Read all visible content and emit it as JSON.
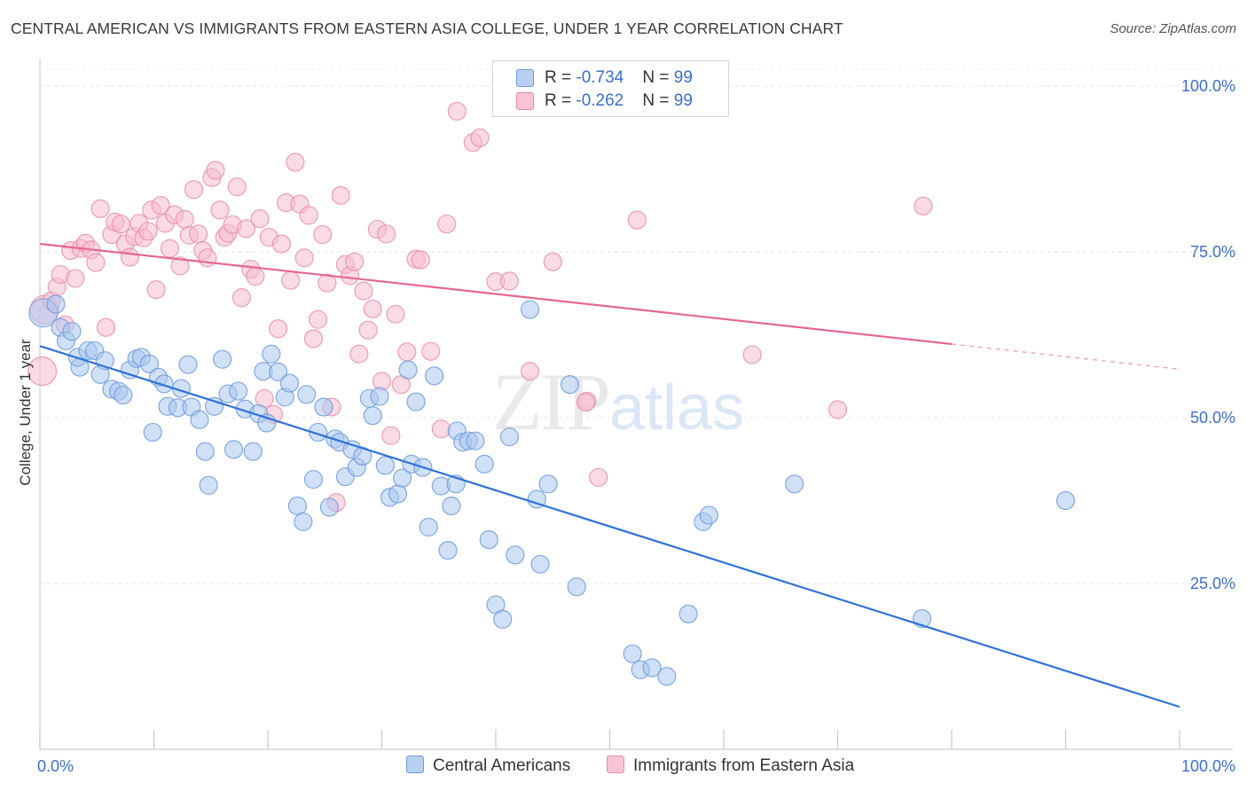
{
  "title": "CENTRAL AMERICAN VS IMMIGRANTS FROM EASTERN ASIA COLLEGE, UNDER 1 YEAR CORRELATION CHART",
  "source": "Source: ZipAtlas.com",
  "watermark": {
    "zip": "ZIP",
    "atlas": "atlas"
  },
  "legend": {
    "rows": [
      {
        "r_label": "R = ",
        "r_value": "-0.734",
        "n_label": "N = ",
        "n_value": "99",
        "color": "#b9d0f2"
      },
      {
        "r_label": "R = ",
        "r_value": "-0.262",
        "n_label": "N = ",
        "n_value": "99",
        "color": "#f8c3d4"
      }
    ]
  },
  "bottom_legend": {
    "series1": "Central Americans",
    "series2": "Immigrants from Eastern Asia"
  },
  "colors": {
    "blue_fill": "#a9c6ee",
    "blue_stroke": "#6f9bdc",
    "blue_line": "#2f73d8",
    "pink_fill": "#f6bccd",
    "pink_stroke": "#e989a8",
    "pink_line": "#e4688f",
    "accent_text": "#3b6fd0"
  },
  "chart_data": {
    "type": "scatter",
    "title": "CENTRAL AMERICAN VS IMMIGRANTS FROM EASTERN ASIA COLLEGE, UNDER 1 YEAR CORRELATION CHART",
    "ylabel": "College, Under 1 year",
    "xlim": [
      0,
      100
    ],
    "ylim": [
      0,
      100
    ],
    "x_tick_labels": [
      "0.0%",
      "100.0%"
    ],
    "y_tick_labels": [
      "100.0%",
      "75.0%",
      "50.0%",
      "25.0%"
    ],
    "y_ticks": [
      100,
      75,
      50,
      25
    ],
    "grid": true,
    "legend_placement": "top-center",
    "series": [
      {
        "name": "Central Americans",
        "r": -0.734,
        "n": 99,
        "trend": {
          "x": [
            0,
            100
          ],
          "y": [
            60.8,
            6.4
          ]
        },
        "points": [
          [
            0.3,
            65.8
          ],
          [
            1.4,
            67.1
          ],
          [
            1.8,
            63.6
          ],
          [
            2.3,
            61.6
          ],
          [
            2.8,
            63.0
          ],
          [
            3.5,
            57.6
          ],
          [
            3.3,
            59.1
          ],
          [
            4.2,
            60.1
          ],
          [
            4.8,
            60.1
          ],
          [
            5.3,
            56.5
          ],
          [
            5.7,
            58.6
          ],
          [
            6.3,
            54.3
          ],
          [
            6.9,
            54.0
          ],
          [
            7.3,
            53.4
          ],
          [
            7.9,
            57.2
          ],
          [
            8.5,
            58.9
          ],
          [
            8.9,
            59.1
          ],
          [
            9.6,
            58.1
          ],
          [
            9.9,
            47.8
          ],
          [
            10.4,
            56.1
          ],
          [
            10.9,
            55.1
          ],
          [
            11.2,
            51.7
          ],
          [
            12.1,
            51.5
          ],
          [
            12.4,
            54.4
          ],
          [
            13.0,
            58.0
          ],
          [
            13.3,
            51.6
          ],
          [
            14.0,
            49.7
          ],
          [
            14.5,
            44.9
          ],
          [
            14.8,
            39.8
          ],
          [
            15.3,
            51.7
          ],
          [
            16.0,
            58.8
          ],
          [
            16.5,
            53.6
          ],
          [
            17.0,
            45.2
          ],
          [
            17.4,
            54.0
          ],
          [
            18.0,
            51.3
          ],
          [
            18.7,
            44.9
          ],
          [
            19.2,
            50.6
          ],
          [
            19.6,
            57.0
          ],
          [
            19.9,
            49.2
          ],
          [
            20.3,
            59.6
          ],
          [
            20.9,
            56.9
          ],
          [
            21.5,
            53.1
          ],
          [
            21.9,
            55.2
          ],
          [
            22.6,
            36.7
          ],
          [
            23.1,
            34.3
          ],
          [
            23.4,
            53.5
          ],
          [
            24.0,
            40.7
          ],
          [
            24.4,
            47.8
          ],
          [
            24.9,
            51.6
          ],
          [
            25.4,
            36.5
          ],
          [
            25.9,
            46.8
          ],
          [
            26.3,
            46.3
          ],
          [
            26.8,
            41.1
          ],
          [
            27.4,
            45.2
          ],
          [
            27.8,
            42.5
          ],
          [
            28.3,
            44.2
          ],
          [
            28.9,
            52.9
          ],
          [
            29.2,
            50.3
          ],
          [
            29.8,
            53.2
          ],
          [
            30.3,
            42.8
          ],
          [
            30.7,
            38.0
          ],
          [
            31.4,
            38.5
          ],
          [
            31.8,
            40.9
          ],
          [
            32.3,
            57.2
          ],
          [
            32.6,
            43.0
          ],
          [
            33.0,
            52.4
          ],
          [
            33.6,
            42.5
          ],
          [
            34.1,
            33.5
          ],
          [
            34.6,
            56.3
          ],
          [
            35.2,
            39.7
          ],
          [
            35.8,
            30.0
          ],
          [
            36.1,
            36.7
          ],
          [
            36.6,
            48.0
          ],
          [
            37.1,
            46.3
          ],
          [
            37.6,
            46.5
          ],
          [
            38.2,
            46.5
          ],
          [
            39.0,
            43.0
          ],
          [
            39.4,
            31.6
          ],
          [
            40.0,
            21.8
          ],
          [
            40.6,
            19.6
          ],
          [
            41.2,
            47.1
          ],
          [
            41.7,
            29.3
          ],
          [
            43.0,
            66.3
          ],
          [
            43.6,
            37.7
          ],
          [
            43.9,
            27.9
          ],
          [
            44.6,
            40.0
          ],
          [
            46.5,
            55.0
          ],
          [
            47.1,
            24.5
          ],
          [
            52.0,
            14.4
          ],
          [
            52.7,
            12.0
          ],
          [
            53.7,
            12.3
          ],
          [
            55.0,
            11.0
          ],
          [
            56.9,
            20.4
          ],
          [
            58.2,
            34.3
          ],
          [
            58.7,
            35.3
          ],
          [
            66.2,
            40.0
          ],
          [
            77.4,
            19.7
          ],
          [
            90.0,
            37.5
          ],
          [
            36.5,
            40.0
          ]
        ]
      },
      {
        "name": "Immigrants from Eastern Asia",
        "r": -0.262,
        "n": 99,
        "trend": {
          "x": [
            0,
            80,
            100
          ],
          "y": [
            76.2,
            61.1,
            57.3
          ],
          "solid_until_x": 80
        },
        "points": [
          [
            0.2,
            57.0
          ],
          [
            0.4,
            66.3
          ],
          [
            1.0,
            67.6
          ],
          [
            1.5,
            69.7
          ],
          [
            1.8,
            71.6
          ],
          [
            2.2,
            64.0
          ],
          [
            2.7,
            75.2
          ],
          [
            3.1,
            71.0
          ],
          [
            3.6,
            75.5
          ],
          [
            4.0,
            76.3
          ],
          [
            4.5,
            75.3
          ],
          [
            4.9,
            73.4
          ],
          [
            5.3,
            81.5
          ],
          [
            5.8,
            63.6
          ],
          [
            6.3,
            77.6
          ],
          [
            6.6,
            79.5
          ],
          [
            7.1,
            79.2
          ],
          [
            7.5,
            76.2
          ],
          [
            7.9,
            74.2
          ],
          [
            8.3,
            77.3
          ],
          [
            8.7,
            79.3
          ],
          [
            9.1,
            77.1
          ],
          [
            9.5,
            78.1
          ],
          [
            9.8,
            81.3
          ],
          [
            10.2,
            69.3
          ],
          [
            10.6,
            82.0
          ],
          [
            11.0,
            79.3
          ],
          [
            11.4,
            75.5
          ],
          [
            11.8,
            80.6
          ],
          [
            12.3,
            72.9
          ],
          [
            12.7,
            79.9
          ],
          [
            13.1,
            77.5
          ],
          [
            13.5,
            84.4
          ],
          [
            13.9,
            77.7
          ],
          [
            14.3,
            75.2
          ],
          [
            14.7,
            74.1
          ],
          [
            15.1,
            86.2
          ],
          [
            15.4,
            87.3
          ],
          [
            15.8,
            81.3
          ],
          [
            16.2,
            77.2
          ],
          [
            16.5,
            77.8
          ],
          [
            16.9,
            79.1
          ],
          [
            17.3,
            84.8
          ],
          [
            17.7,
            68.1
          ],
          [
            18.1,
            78.5
          ],
          [
            18.5,
            72.4
          ],
          [
            18.9,
            71.3
          ],
          [
            19.3,
            80.0
          ],
          [
            19.7,
            52.9
          ],
          [
            20.1,
            77.2
          ],
          [
            20.5,
            50.5
          ],
          [
            20.9,
            63.4
          ],
          [
            21.2,
            76.2
          ],
          [
            21.6,
            82.4
          ],
          [
            22.0,
            70.7
          ],
          [
            22.4,
            88.5
          ],
          [
            22.8,
            82.2
          ],
          [
            23.2,
            74.1
          ],
          [
            23.6,
            80.5
          ],
          [
            24.0,
            61.9
          ],
          [
            24.4,
            64.8
          ],
          [
            24.8,
            77.6
          ],
          [
            25.2,
            70.3
          ],
          [
            25.6,
            51.6
          ],
          [
            26.0,
            37.2
          ],
          [
            26.4,
            83.5
          ],
          [
            26.8,
            73.1
          ],
          [
            27.2,
            71.4
          ],
          [
            27.6,
            73.5
          ],
          [
            28.0,
            59.6
          ],
          [
            28.4,
            69.1
          ],
          [
            28.8,
            63.2
          ],
          [
            29.2,
            66.4
          ],
          [
            29.6,
            78.4
          ],
          [
            30.0,
            55.5
          ],
          [
            30.4,
            77.7
          ],
          [
            30.8,
            47.3
          ],
          [
            31.2,
            65.6
          ],
          [
            31.7,
            55.0
          ],
          [
            32.2,
            59.9
          ],
          [
            33.0,
            73.9
          ],
          [
            33.4,
            73.8
          ],
          [
            34.3,
            60.0
          ],
          [
            35.2,
            48.3
          ],
          [
            35.7,
            79.2
          ],
          [
            36.6,
            96.2
          ],
          [
            38.0,
            91.5
          ],
          [
            38.6,
            92.2
          ],
          [
            40.0,
            70.5
          ],
          [
            41.2,
            70.6
          ],
          [
            43.0,
            57.0
          ],
          [
            45.0,
            73.5
          ],
          [
            48.0,
            52.5
          ],
          [
            49.0,
            41.0
          ],
          [
            52.4,
            79.8
          ],
          [
            62.5,
            59.5
          ],
          [
            70.0,
            51.2
          ],
          [
            77.5,
            81.9
          ],
          [
            47.9,
            52.3
          ]
        ]
      }
    ]
  }
}
